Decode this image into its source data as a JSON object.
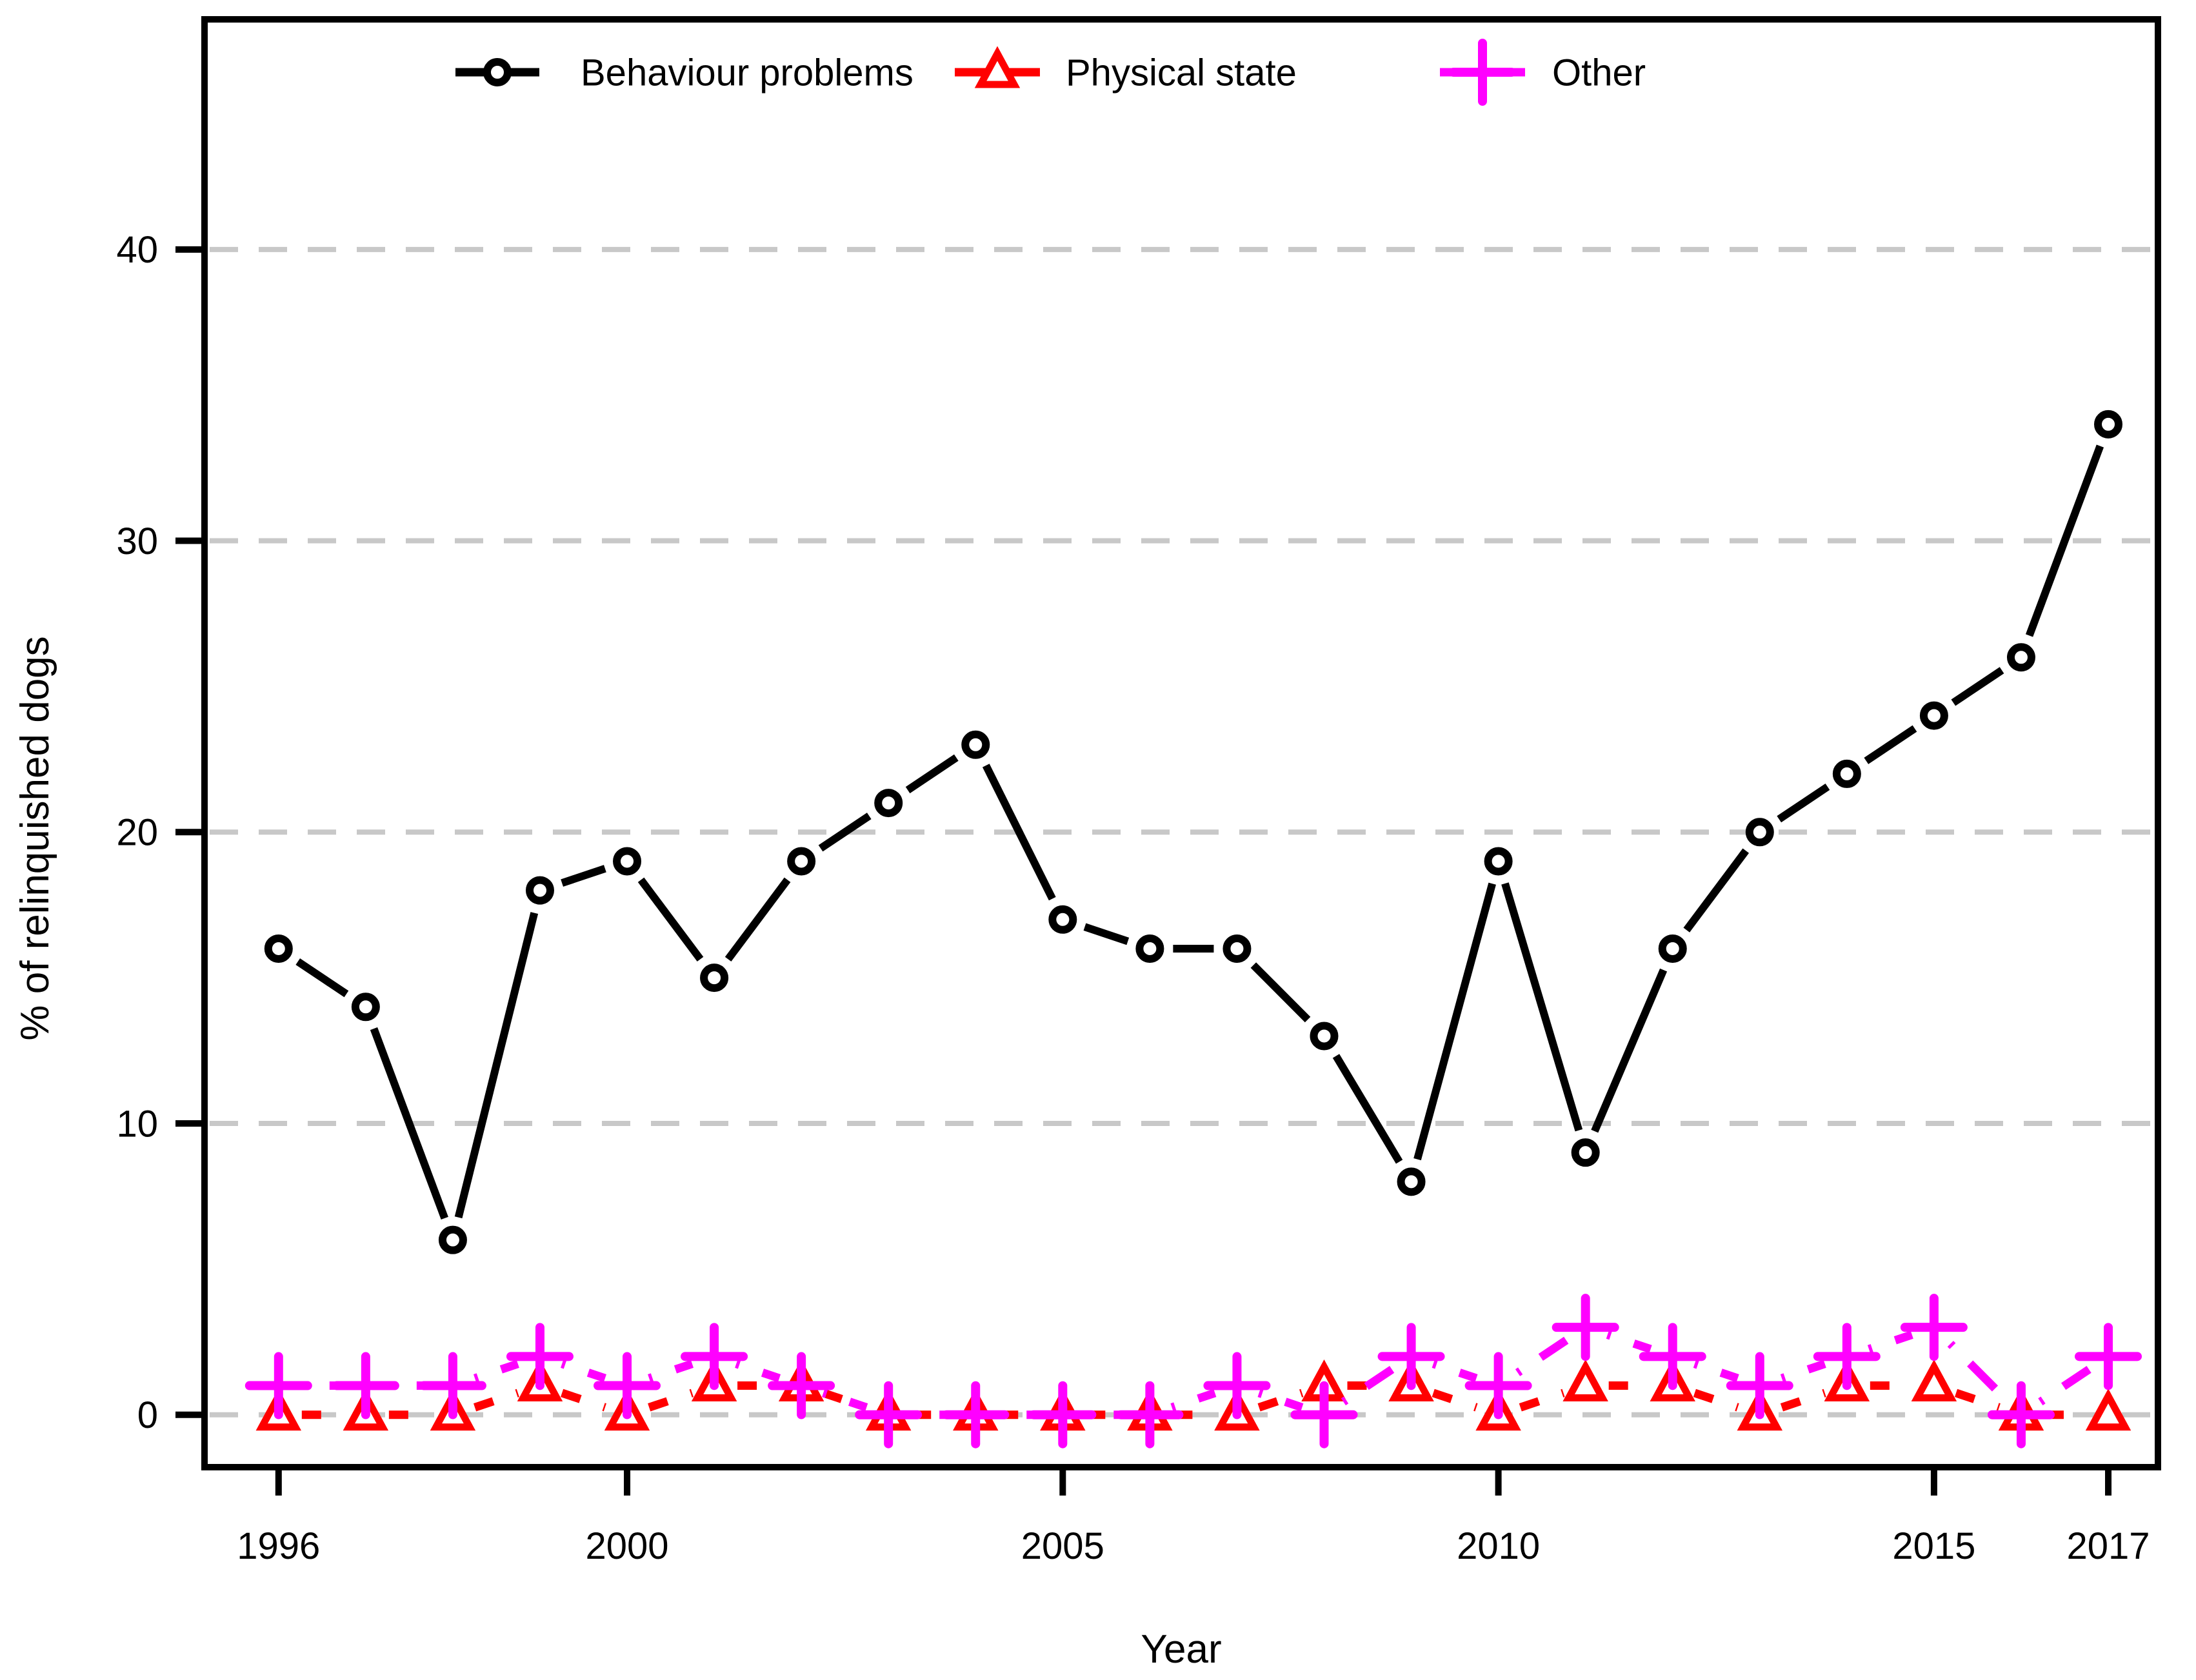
{
  "figure": {
    "background_color": "#FFFFFF",
    "axis_color": "#000000",
    "grid_color": "#C8C8C8",
    "text_color": "#000000"
  },
  "chart_data": {
    "type": "line",
    "title": "",
    "xlabel": "Year",
    "ylabel": "% of relinquished dogs",
    "x": [
      1996,
      1997,
      1998,
      1999,
      2000,
      2001,
      2002,
      2003,
      2004,
      2005,
      2006,
      2007,
      2008,
      2009,
      2010,
      2011,
      2012,
      2013,
      2014,
      2015,
      2016,
      2017
    ],
    "xticks": [
      1996,
      2000,
      2005,
      2010,
      2015,
      2017
    ],
    "yticks": [
      0,
      10,
      20,
      30,
      40
    ],
    "xlim": [
      1995.15,
      2017.57
    ],
    "ylim": [
      -1.8,
      47.9
    ],
    "grid": "horizontal-dashed",
    "legend_position": "top-inside",
    "series": [
      {
        "name": "Behaviour problems",
        "color": "#000000",
        "marker": "circle",
        "line_style": "solid",
        "values": [
          16,
          14,
          6,
          18,
          19,
          15,
          19,
          21,
          23,
          17,
          16,
          16,
          13,
          8,
          19,
          9,
          16,
          20,
          22,
          24,
          26,
          34
        ]
      },
      {
        "name": "Physical state",
        "color": "#FF0000",
        "marker": "triangle",
        "line_style": "dashed",
        "values": [
          0,
          0,
          0,
          1,
          0,
          1,
          1,
          0,
          0,
          0,
          0,
          0,
          1,
          1,
          0,
          1,
          1,
          0,
          1,
          1,
          0,
          0
        ]
      },
      {
        "name": "Other",
        "color": "#FF00FF",
        "marker": "plus",
        "line_style": "dashed",
        "values": [
          1,
          1,
          1,
          2,
          1,
          2,
          1,
          0,
          0,
          0,
          0,
          1,
          0,
          2,
          1,
          3,
          2,
          1,
          2,
          3,
          0,
          2
        ]
      }
    ]
  }
}
